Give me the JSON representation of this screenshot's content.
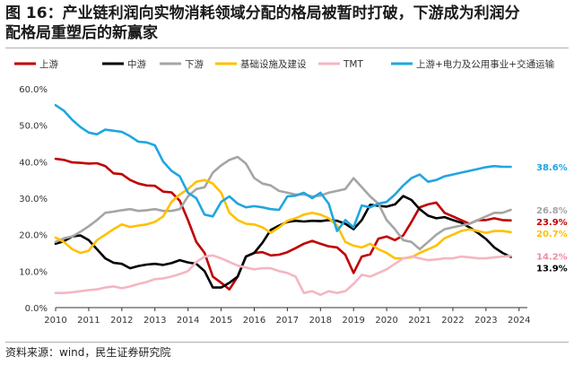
{
  "header": {
    "title_line1": "图 16：产业链利润向实物消耗领域分配的格局被暂时打破，下游成为利润分",
    "title_line2": "配格局重塑后的新赢家"
  },
  "footer": {
    "source": "资料来源：wind，民生证券研究院"
  },
  "chart_data": {
    "type": "line",
    "title": "",
    "xlabel": "",
    "ylabel": "",
    "x_start": 2010,
    "x_step": 0.25,
    "xlim": [
      2010,
      2024.25
    ],
    "ylim": [
      0,
      60
    ],
    "yticks": [
      0,
      10,
      20,
      30,
      40,
      50,
      60
    ],
    "ytick_labels": [
      "0.0%",
      "10.0%",
      "20.0%",
      "30.0%",
      "40.0%",
      "50.0%",
      "60.0%"
    ],
    "xticks": [
      2010,
      2011,
      2012,
      2013,
      2014,
      2015,
      2016,
      2017,
      2018,
      2019,
      2020,
      2021,
      2022,
      2023,
      2024
    ],
    "xtick_labels": [
      "2010",
      "2011",
      "2012",
      "2013",
      "2014",
      "2015",
      "2016",
      "2017",
      "2018",
      "2019",
      "2020",
      "2021",
      "2022",
      "2023",
      "2024"
    ],
    "grid": false,
    "legend_position": "top",
    "series": [
      {
        "name": "上游",
        "color": "#c00000",
        "end_label": "23.9%",
        "values": [
          40.8,
          40.5,
          39.8,
          39.7,
          39.5,
          39.6,
          38.8,
          36.8,
          36.6,
          35.0,
          34.0,
          33.5,
          33.4,
          31.8,
          31.6,
          29.3,
          24.0,
          18.0,
          15.0,
          8.5,
          6.8,
          5.0,
          8.5,
          14.0,
          15.0,
          15.2,
          14.3,
          14.5,
          15.2,
          16.3,
          17.5,
          18.3,
          17.5,
          16.8,
          16.5,
          14.5,
          9.5,
          14.0,
          14.6,
          18.9,
          19.5,
          18.5,
          19.8,
          23.5,
          27.5,
          28.3,
          28.8,
          26.0,
          25.0,
          24.0,
          23.0,
          24.0,
          24.0,
          24.5,
          24.0,
          23.9
        ]
      },
      {
        "name": "中游",
        "color": "#000000",
        "end_label": "13.9%",
        "values": [
          17.5,
          18.2,
          19.5,
          19.8,
          18.5,
          16.0,
          13.5,
          12.3,
          12.0,
          10.8,
          11.4,
          11.8,
          12.0,
          11.7,
          12.2,
          13.0,
          12.4,
          12.0,
          10.0,
          5.5,
          5.5,
          6.8,
          8.5,
          14.0,
          15.0,
          17.8,
          21.3,
          22.5,
          23.5,
          23.8,
          23.6,
          23.8,
          23.7,
          24.0,
          23.8,
          23.0,
          21.5,
          24.0,
          28.2,
          27.9,
          27.7,
          28.3,
          30.6,
          29.5,
          27.0,
          25.2,
          24.5,
          24.8,
          24.0,
          23.3,
          22.0,
          20.5,
          18.8,
          16.5,
          15.0,
          13.9
        ]
      },
      {
        "name": "下游",
        "color": "#a5a5a5",
        "end_label": "26.8%",
        "values": [
          18.0,
          19.0,
          19.5,
          20.8,
          22.3,
          24.0,
          26.0,
          26.3,
          26.7,
          27.0,
          26.5,
          26.7,
          27.0,
          26.5,
          26.5,
          27.0,
          30.5,
          32.5,
          33.0,
          37.0,
          39.0,
          40.5,
          41.3,
          39.5,
          35.5,
          34.0,
          33.5,
          32.0,
          31.5,
          31.0,
          31.0,
          30.5,
          30.7,
          31.5,
          32.0,
          32.5,
          35.5,
          33.0,
          30.5,
          28.5,
          24.0,
          21.5,
          18.5,
          18.0,
          16.0,
          18.0,
          20.0,
          21.5,
          22.0,
          22.5,
          23.0,
          24.0,
          25.0,
          26.0,
          26.0,
          26.8
        ]
      },
      {
        "name": "基础设施及建设",
        "color": "#ffc000",
        "end_label": "20.7%",
        "values": [
          19.2,
          18.0,
          16.0,
          15.0,
          15.6,
          18.5,
          20.0,
          21.5,
          22.8,
          22.1,
          22.5,
          22.8,
          23.5,
          25.0,
          29.0,
          31.0,
          32.5,
          34.5,
          35.0,
          34.0,
          31.5,
          26.0,
          24.0,
          23.0,
          22.8,
          22.0,
          20.5,
          22.0,
          23.8,
          24.5,
          25.5,
          26.0,
          25.5,
          24.5,
          22.5,
          18.0,
          17.0,
          16.5,
          17.5,
          16.0,
          15.0,
          13.5,
          13.5,
          13.8,
          15.0,
          16.0,
          17.0,
          19.0,
          20.0,
          21.0,
          21.5,
          21.0,
          20.5,
          21.0,
          21.0,
          20.7
        ]
      },
      {
        "name": "TMT",
        "color": "#f4b6c2",
        "end_label": "14.2%",
        "values": [
          4.0,
          4.0,
          4.2,
          4.5,
          4.8,
          5.0,
          5.5,
          5.8,
          5.3,
          5.8,
          6.5,
          7.0,
          7.8,
          8.0,
          8.5,
          9.2,
          10.0,
          12.5,
          14.0,
          14.3,
          13.5,
          12.5,
          11.5,
          11.0,
          10.5,
          10.8,
          10.8,
          10.0,
          9.5,
          8.5,
          4.0,
          4.5,
          3.5,
          4.5,
          4.0,
          4.5,
          6.5,
          9.0,
          8.5,
          9.5,
          10.5,
          12.0,
          13.5,
          14.0,
          13.5,
          13.0,
          13.2,
          13.5,
          13.5,
          14.0,
          13.8,
          13.5,
          13.5,
          13.8,
          14.0,
          14.2
        ]
      },
      {
        "name": "上游+电力及公用事业+交通运输",
        "color": "#1fa6e0",
        "end_label": "38.6%",
        "values": [
          55.5,
          54.0,
          51.5,
          49.5,
          48.0,
          47.5,
          48.8,
          48.5,
          48.2,
          47.0,
          45.5,
          45.3,
          44.5,
          40.0,
          37.5,
          36.0,
          31.5,
          30.0,
          25.5,
          25.0,
          29.0,
          30.5,
          28.5,
          27.5,
          27.8,
          27.5,
          27.0,
          26.8,
          30.5,
          30.7,
          31.5,
          30.0,
          31.5,
          28.5,
          21.0,
          24.0,
          22.0,
          28.0,
          27.5,
          28.5,
          29.0,
          31.0,
          33.5,
          35.5,
          36.5,
          34.5,
          35.0,
          36.0,
          36.5,
          37.0,
          37.5,
          38.0,
          38.5,
          38.8,
          38.6,
          38.6
        ]
      }
    ]
  }
}
